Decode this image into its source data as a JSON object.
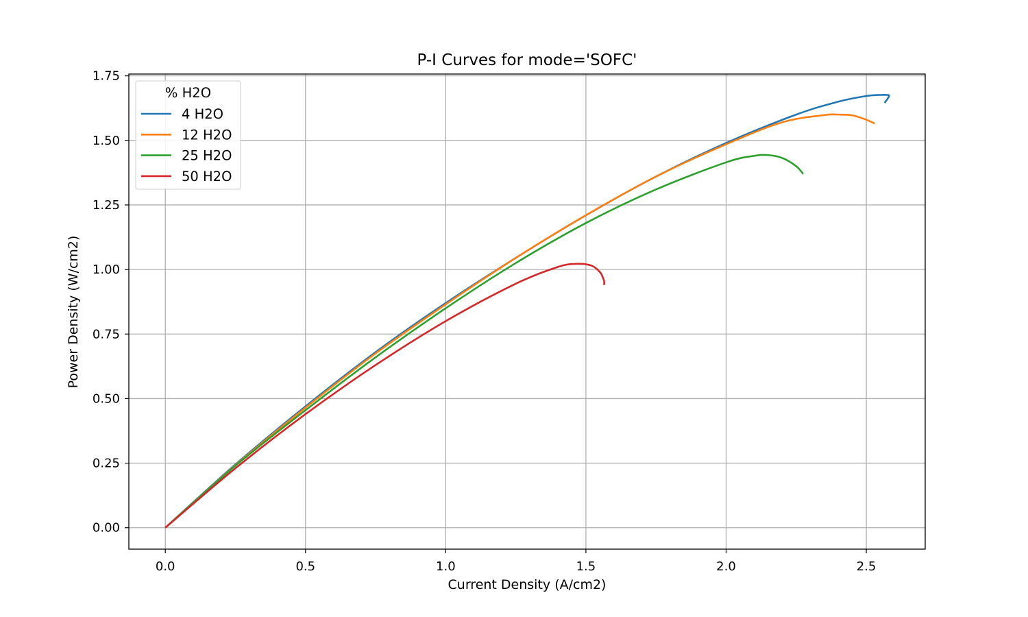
{
  "chart_data": {
    "type": "line",
    "title": "P-I Curves for mode='SOFC'",
    "xlabel": "Current Density (A/cm2)",
    "ylabel": "Power Density (W/cm2)",
    "xlim": [
      -0.13,
      2.71
    ],
    "ylim": [
      -0.083,
      1.757
    ],
    "xticks": [
      0.0,
      0.5,
      1.0,
      1.5,
      2.0,
      2.5
    ],
    "xtick_labels": [
      "0.0",
      "0.5",
      "1.0",
      "1.5",
      "2.0",
      "2.5"
    ],
    "yticks": [
      0.0,
      0.25,
      0.5,
      0.75,
      1.0,
      1.25,
      1.5,
      1.75
    ],
    "ytick_labels": [
      "0.00",
      "0.25",
      "0.50",
      "0.75",
      "1.00",
      "1.25",
      "1.50",
      "1.75"
    ],
    "grid": true,
    "legend": {
      "title": "% H2O",
      "position": "top-left"
    },
    "series": [
      {
        "name": "4 H2O",
        "color": "#1f77b4",
        "x": [
          0.0,
          0.25,
          0.5,
          0.75,
          1.0,
          1.25,
          1.5,
          1.75,
          2.0,
          2.25,
          2.4,
          2.5,
          2.55,
          2.58,
          2.575,
          2.565
        ],
        "y": [
          0.0,
          0.245,
          0.47,
          0.68,
          0.87,
          1.045,
          1.21,
          1.36,
          1.49,
          1.6,
          1.65,
          1.672,
          1.676,
          1.675,
          1.66,
          1.645
        ]
      },
      {
        "name": "12 H2O",
        "color": "#ff7f0e",
        "x": [
          0.0,
          0.25,
          0.5,
          0.75,
          1.0,
          1.25,
          1.5,
          1.75,
          2.0,
          2.2,
          2.35,
          2.4,
          2.45,
          2.5,
          2.53
        ],
        "y": [
          0.0,
          0.242,
          0.465,
          0.675,
          0.865,
          1.045,
          1.21,
          1.36,
          1.485,
          1.57,
          1.598,
          1.6,
          1.597,
          1.58,
          1.565
        ]
      },
      {
        "name": "25 H2O",
        "color": "#2ca02c",
        "x": [
          0.0,
          0.25,
          0.5,
          0.75,
          1.0,
          1.25,
          1.5,
          1.75,
          2.0,
          2.1,
          2.15,
          2.2,
          2.25,
          2.275
        ],
        "y": [
          0.0,
          0.24,
          0.455,
          0.66,
          0.85,
          1.025,
          1.18,
          1.31,
          1.415,
          1.44,
          1.443,
          1.432,
          1.4,
          1.37
        ]
      },
      {
        "name": "50 H2O",
        "color": "#d62728",
        "x": [
          0.0,
          0.25,
          0.5,
          0.75,
          1.0,
          1.25,
          1.4,
          1.47,
          1.52,
          1.55,
          1.56,
          1.565,
          1.565
        ],
        "y": [
          0.0,
          0.23,
          0.44,
          0.63,
          0.8,
          0.945,
          1.01,
          1.022,
          1.015,
          0.99,
          0.97,
          0.955,
          0.94
        ]
      }
    ]
  }
}
